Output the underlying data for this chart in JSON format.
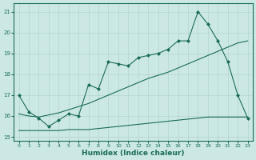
{
  "xlabel": "Humidex (Indice chaleur)",
  "xlim": [
    -0.5,
    23.5
  ],
  "ylim": [
    14.8,
    21.4
  ],
  "yticks": [
    15,
    16,
    17,
    18,
    19,
    20,
    21
  ],
  "xticks": [
    0,
    1,
    2,
    3,
    4,
    5,
    6,
    7,
    8,
    9,
    10,
    11,
    12,
    13,
    14,
    15,
    16,
    17,
    18,
    19,
    20,
    21,
    22,
    23
  ],
  "bg_color": "#cce8e4",
  "grid_color": "#b0d4cf",
  "line_color": "#1a6b5a",
  "line1_x": [
    0,
    1,
    2,
    3,
    4,
    5,
    6,
    7,
    8,
    9,
    10,
    11,
    12,
    13,
    14,
    15,
    16,
    17,
    18,
    19,
    20,
    21,
    22,
    23
  ],
  "line1_y": [
    17.0,
    16.2,
    15.9,
    15.5,
    15.8,
    16.1,
    16.0,
    17.5,
    17.3,
    18.6,
    18.5,
    18.4,
    18.8,
    18.9,
    19.0,
    19.2,
    19.6,
    19.6,
    21.0,
    20.4,
    19.6,
    18.6,
    17.0,
    15.9
  ],
  "line2_x": [
    0,
    1,
    2,
    3,
    4,
    5,
    6,
    7,
    8,
    9,
    10,
    11,
    12,
    13,
    14,
    15,
    16,
    17,
    18,
    19,
    20,
    21,
    22,
    23
  ],
  "line2_y": [
    16.1,
    16.0,
    15.95,
    16.05,
    16.15,
    16.3,
    16.45,
    16.6,
    16.8,
    17.0,
    17.2,
    17.4,
    17.6,
    17.8,
    17.95,
    18.1,
    18.3,
    18.5,
    18.7,
    18.9,
    19.1,
    19.3,
    19.5,
    19.6
  ],
  "line3_x": [
    0,
    1,
    2,
    3,
    4,
    5,
    6,
    7,
    8,
    9,
    10,
    11,
    12,
    13,
    14,
    15,
    16,
    17,
    18,
    19,
    20,
    21,
    22,
    23
  ],
  "line3_y": [
    15.3,
    15.3,
    15.3,
    15.3,
    15.3,
    15.35,
    15.35,
    15.35,
    15.4,
    15.45,
    15.5,
    15.55,
    15.6,
    15.65,
    15.7,
    15.75,
    15.8,
    15.85,
    15.9,
    15.95,
    15.95,
    15.95,
    15.95,
    15.95
  ]
}
